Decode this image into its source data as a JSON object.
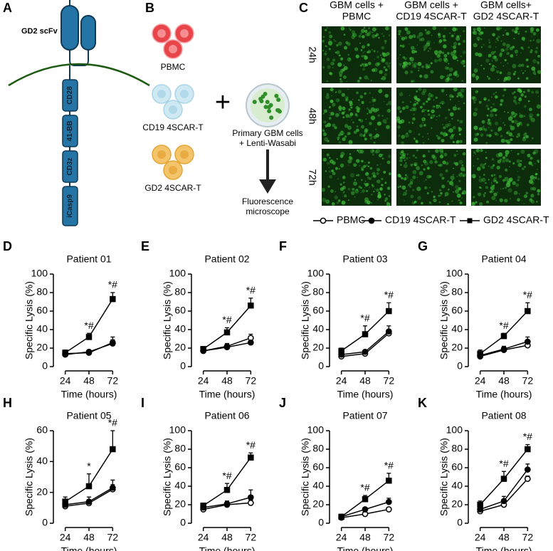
{
  "panel_a": {
    "label": "A",
    "scfv": "GD2 scFv",
    "domains": [
      "CD28",
      "41-BB",
      "CD3z",
      "iCasp9"
    ]
  },
  "panel_b": {
    "label": "B",
    "cells": [
      "PBMC",
      "CD19 4SCAR-T",
      "GD2 4SCAR-T"
    ],
    "target": [
      "Primary GBM cells",
      "+ Lenti-Wasabi"
    ],
    "readout": [
      "Fluorescence",
      "microscope"
    ]
  },
  "panel_c": {
    "label": "C",
    "columns": [
      [
        "GBM cells +",
        "PBMC"
      ],
      [
        "GBM cells +",
        "CD19 4SCAR-T"
      ],
      [
        "GBM cells+",
        "GD2 4SCAR-T"
      ]
    ],
    "rows": [
      "24h",
      "48h",
      "72h"
    ]
  },
  "chart_data": [
    {
      "type": "line",
      "panel": "D",
      "title": "Patient 01",
      "x_label": "Time (hours)",
      "y_label": "Specific Lysis (%)",
      "x": [
        24,
        48,
        72
      ],
      "xlim": [
        12,
        84
      ],
      "xticks": [
        24,
        48,
        72
      ],
      "ylim": [
        0,
        100
      ],
      "yticks": [
        0,
        20,
        40,
        60,
        80,
        100
      ],
      "series": [
        {
          "name": "PBMC",
          "color": "#000000",
          "marker": "circle-open",
          "values": [
            13,
            16,
            25
          ],
          "errors": [
            2,
            2,
            7
          ]
        },
        {
          "name": "CD19 4SCAR-T",
          "color": "#000000",
          "marker": "circle",
          "values": [
            14,
            15,
            26
          ],
          "errors": [
            2,
            2,
            3
          ]
        },
        {
          "name": "GD2 4SCAR-T",
          "color": "#000000",
          "marker": "square",
          "values": [
            15,
            32,
            73
          ],
          "errors": [
            3,
            4,
            7
          ],
          "significance": [
            null,
            "*#",
            "*#"
          ]
        }
      ]
    },
    {
      "type": "line",
      "panel": "E",
      "title": "Patient 02",
      "x_label": "Time (hours)",
      "y_label": "Specific Lysis (%)",
      "x": [
        24,
        48,
        72
      ],
      "xlim": [
        12,
        84
      ],
      "xticks": [
        24,
        48,
        72
      ],
      "ylim": [
        0,
        100
      ],
      "yticks": [
        0,
        20,
        40,
        60,
        80,
        100
      ],
      "series": [
        {
          "name": "PBMC",
          "color": "#000000",
          "marker": "circle-open",
          "values": [
            17,
            22,
            31
          ],
          "errors": [
            2,
            3,
            4
          ]
        },
        {
          "name": "CD19 4SCAR-T",
          "color": "#000000",
          "marker": "circle",
          "values": [
            17,
            21,
            26
          ],
          "errors": [
            1,
            2,
            2
          ]
        },
        {
          "name": "GD2 4SCAR-T",
          "color": "#000000",
          "marker": "square",
          "values": [
            19,
            37,
            66
          ],
          "errors": [
            2,
            5,
            8
          ],
          "significance": [
            null,
            "*#",
            "*#"
          ]
        }
      ]
    },
    {
      "type": "line",
      "panel": "F",
      "title": "Patient 03",
      "x_label": "Time (hours)",
      "y_label": "Specific Lysis (%)",
      "x": [
        24,
        48,
        72
      ],
      "xlim": [
        12,
        84
      ],
      "xticks": [
        24,
        48,
        72
      ],
      "ylim": [
        0,
        100
      ],
      "yticks": [
        0,
        20,
        40,
        60,
        80,
        100
      ],
      "series": [
        {
          "name": "PBMC",
          "color": "#000000",
          "marker": "circle-open",
          "values": [
            11,
            14,
            36
          ],
          "errors": [
            2,
            2,
            4
          ]
        },
        {
          "name": "CD19 4SCAR-T",
          "color": "#000000",
          "marker": "circle",
          "values": [
            13,
            16,
            38
          ],
          "errors": [
            2,
            2,
            6
          ]
        },
        {
          "name": "GD2 4SCAR-T",
          "color": "#000000",
          "marker": "square",
          "values": [
            17,
            35,
            60
          ],
          "errors": [
            3,
            9,
            9
          ],
          "significance": [
            null,
            "*#",
            "*#"
          ]
        }
      ]
    },
    {
      "type": "line",
      "panel": "G",
      "title": "Patient 04",
      "x_label": "Time (hours)",
      "y_label": "Specific Lysis (%)",
      "x": [
        24,
        48,
        72
      ],
      "xlim": [
        12,
        84
      ],
      "xticks": [
        24,
        48,
        72
      ],
      "ylim": [
        0,
        100
      ],
      "yticks": [
        0,
        20,
        40,
        60,
        80,
        100
      ],
      "series": [
        {
          "name": "PBMC",
          "color": "#000000",
          "marker": "circle-open",
          "values": [
            11,
            18,
            23
          ],
          "errors": [
            2,
            2,
            2
          ]
        },
        {
          "name": "CD19 4SCAR-T",
          "color": "#000000",
          "marker": "circle",
          "values": [
            12,
            19,
            27
          ],
          "errors": [
            2,
            3,
            5
          ]
        },
        {
          "name": "GD2 4SCAR-T",
          "color": "#000000",
          "marker": "square",
          "values": [
            14,
            33,
            60
          ],
          "errors": [
            4,
            3,
            9
          ],
          "significance": [
            null,
            "*#",
            "*#"
          ]
        }
      ]
    },
    {
      "type": "line",
      "panel": "H",
      "title": "Patient 05",
      "x_label": "Time (hours)",
      "y_label": "Specific Lysis (%)",
      "x": [
        24,
        48,
        72
      ],
      "xlim": [
        12,
        84
      ],
      "xticks": [
        24,
        48,
        72
      ],
      "ylim": [
        0,
        60
      ],
      "yticks": [
        0,
        20,
        40,
        60
      ],
      "series": [
        {
          "name": "PBMC",
          "color": "#000000",
          "marker": "circle-open",
          "values": [
            11,
            13,
            22
          ],
          "errors": [
            2,
            2,
            3
          ]
        },
        {
          "name": "CD19 4SCAR-T",
          "color": "#000000",
          "marker": "circle",
          "values": [
            12,
            14,
            23
          ],
          "errors": [
            2,
            3,
            5
          ]
        },
        {
          "name": "GD2 4SCAR-T",
          "color": "#000000",
          "marker": "square",
          "values": [
            14,
            24,
            48
          ],
          "errors": [
            3,
            8,
            12
          ],
          "significance": [
            null,
            "*",
            "*#"
          ]
        }
      ]
    },
    {
      "type": "line",
      "panel": "I",
      "title": "Patient 06",
      "x_label": "Time (hours)",
      "y_label": "Specific Lysis (%)",
      "x": [
        24,
        48,
        72
      ],
      "xlim": [
        12,
        84
      ],
      "xticks": [
        24,
        48,
        72
      ],
      "ylim": [
        0,
        100
      ],
      "yticks": [
        0,
        20,
        40,
        60,
        80,
        100
      ],
      "series": [
        {
          "name": "PBMC",
          "color": "#000000",
          "marker": "circle-open",
          "values": [
            15,
            20,
            22
          ],
          "errors": [
            2,
            2,
            3
          ]
        },
        {
          "name": "CD19 4SCAR-T",
          "color": "#000000",
          "marker": "circle",
          "values": [
            17,
            21,
            28
          ],
          "errors": [
            2,
            3,
            8
          ]
        },
        {
          "name": "GD2 4SCAR-T",
          "color": "#000000",
          "marker": "square",
          "values": [
            19,
            36,
            71
          ],
          "errors": [
            2,
            7,
            5
          ],
          "significance": [
            null,
            "*#",
            "*#"
          ]
        }
      ]
    },
    {
      "type": "line",
      "panel": "J",
      "title": "Patient 07",
      "x_label": "Time (hours)",
      "y_label": "Specific Lysis (%)",
      "x": [
        24,
        48,
        72
      ],
      "xlim": [
        12,
        84
      ],
      "xticks": [
        24,
        48,
        72
      ],
      "ylim": [
        0,
        100
      ],
      "yticks": [
        0,
        20,
        40,
        60,
        80,
        100
      ],
      "series": [
        {
          "name": "PBMC",
          "color": "#000000",
          "marker": "circle-open",
          "values": [
            6,
            10,
            15
          ],
          "errors": [
            1,
            2,
            2
          ]
        },
        {
          "name": "CD19 4SCAR-T",
          "color": "#000000",
          "marker": "circle",
          "values": [
            7,
            15,
            23
          ],
          "errors": [
            1,
            2,
            4
          ]
        },
        {
          "name": "GD2 4SCAR-T",
          "color": "#000000",
          "marker": "square",
          "values": [
            7,
            26,
            46
          ],
          "errors": [
            2,
            4,
            8
          ],
          "significance": [
            null,
            "*#",
            "*#"
          ]
        }
      ]
    },
    {
      "type": "line",
      "panel": "K",
      "title": "Patient 08",
      "x_label": "Time (hours)",
      "y_label": "Specific Lysis (%)",
      "x": [
        24,
        48,
        72
      ],
      "xlim": [
        12,
        84
      ],
      "xticks": [
        24,
        48,
        72
      ],
      "ylim": [
        0,
        100
      ],
      "yticks": [
        0,
        20,
        40,
        60,
        80,
        100
      ],
      "series": [
        {
          "name": "PBMC",
          "color": "#000000",
          "marker": "circle-open",
          "values": [
            13,
            20,
            48
          ],
          "errors": [
            2,
            3,
            3
          ]
        },
        {
          "name": "CD19 4SCAR-T",
          "color": "#000000",
          "marker": "circle",
          "values": [
            15,
            24,
            58
          ],
          "errors": [
            3,
            5,
            6
          ]
        },
        {
          "name": "GD2 4SCAR-T",
          "color": "#000000",
          "marker": "square",
          "values": [
            20,
            48,
            80
          ],
          "errors": [
            4,
            8,
            5
          ],
          "significance": [
            null,
            "*#",
            "*#"
          ]
        }
      ]
    }
  ]
}
